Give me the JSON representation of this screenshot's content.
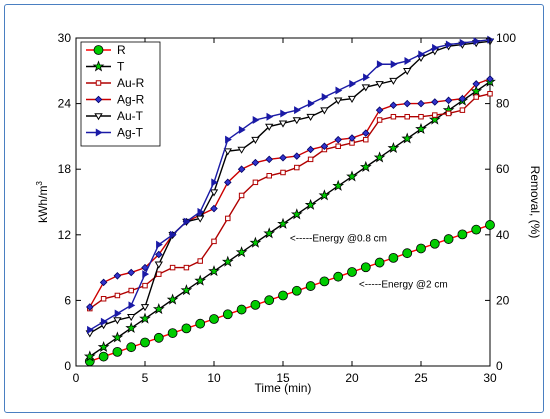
{
  "chart_data": {
    "type": "line",
    "xlabel": "Time (min)",
    "ylabel_left_base": "kWh/m",
    "ylabel_left_sup": "3",
    "ylabel_right": "Removal, (%)",
    "xlim": [
      0,
      30
    ],
    "ylim_left": [
      0,
      30
    ],
    "ylim_right": [
      0,
      100
    ],
    "xticks": [
      0,
      5,
      10,
      15,
      20,
      25,
      30
    ],
    "yticks_left": [
      0,
      6,
      12,
      18,
      24,
      30
    ],
    "yticks_right": [
      0,
      20,
      40,
      60,
      80,
      100
    ],
    "grid": false,
    "legend_position": "top-left",
    "annotations": [
      {
        "text": "<-----Energy @0.8 cm",
        "x": 15.5,
        "y": 11.4
      },
      {
        "text": "<-----Energy @2 cm",
        "x": 20.5,
        "y": 7.2
      }
    ],
    "x": [
      1,
      2,
      3,
      4,
      5,
      6,
      7,
      8,
      9,
      10,
      11,
      12,
      13,
      14,
      15,
      16,
      17,
      18,
      19,
      20,
      21,
      22,
      23,
      24,
      25,
      26,
      27,
      28,
      29,
      30
    ],
    "series": [
      {
        "name": "R",
        "axis": "left",
        "marker": "circle",
        "line_color": "#ff0000",
        "marker_fill": "#00cc00",
        "marker_edge": "#000000",
        "values": [
          0.43,
          0.86,
          1.29,
          1.72,
          2.15,
          2.58,
          3.01,
          3.44,
          3.87,
          4.3,
          4.73,
          5.16,
          5.59,
          6.02,
          6.45,
          6.88,
          7.31,
          7.74,
          8.17,
          8.6,
          9.03,
          9.46,
          9.89,
          10.32,
          10.75,
          11.18,
          11.61,
          12.04,
          12.47,
          12.9
        ]
      },
      {
        "name": "T",
        "axis": "left",
        "marker": "star",
        "line_color": "#000000",
        "marker_fill": "#00cc00",
        "marker_edge": "#000000",
        "values": [
          0.87,
          1.73,
          2.6,
          3.47,
          4.33,
          5.2,
          6.07,
          6.93,
          7.8,
          8.67,
          9.53,
          10.4,
          11.27,
          12.13,
          13.0,
          13.87,
          14.73,
          15.6,
          16.47,
          17.33,
          18.2,
          19.07,
          19.93,
          20.8,
          21.67,
          22.53,
          23.4,
          24.27,
          25.13,
          26.0
        ]
      },
      {
        "name": "Au-R",
        "axis": "right",
        "marker": "square",
        "line_color": "#b00000",
        "marker_fill": "#ffffff",
        "marker_edge": "#b00000",
        "values": [
          17.5,
          20.5,
          21.5,
          23,
          24.5,
          28,
          30,
          30,
          32,
          38,
          45,
          52,
          56,
          58,
          59,
          60.5,
          63,
          66,
          67,
          68,
          69,
          75,
          76,
          76,
          76,
          76.5,
          77,
          78,
          82,
          83
        ]
      },
      {
        "name": "Ag-R",
        "axis": "right",
        "marker": "diamond",
        "line_color": "#cc0000",
        "marker_fill": "#3333cc",
        "marker_edge": "#000066",
        "values": [
          18,
          25.5,
          27.5,
          28.5,
          30,
          34,
          40,
          44,
          46,
          48,
          56,
          60,
          62,
          63,
          63.5,
          64,
          66,
          67,
          69,
          69.5,
          71,
          78,
          79.5,
          80,
          80,
          80.5,
          81,
          81.5,
          86,
          87.5
        ]
      },
      {
        "name": "Au-T",
        "axis": "right",
        "marker": "triangle-down",
        "line_color": "#000000",
        "marker_fill": "#ffffff",
        "marker_edge": "#000000",
        "values": [
          10,
          12.5,
          14,
          15,
          18,
          31,
          40,
          44,
          45,
          53,
          65.5,
          66,
          69,
          73,
          74,
          75,
          76,
          78,
          81,
          81.5,
          85,
          86,
          87,
          90,
          94,
          96,
          97.5,
          98,
          98.5,
          99
        ]
      },
      {
        "name": "Ag-T",
        "axis": "right",
        "marker": "triangle-right",
        "line_color": "#1a1aa6",
        "marker_fill": "#1a1aa6",
        "marker_edge": "#1a1aa6",
        "values": [
          11,
          13.5,
          16,
          18.5,
          28,
          37,
          40,
          44,
          47,
          56,
          69,
          72,
          75,
          76,
          77,
          78,
          80,
          82,
          84,
          86,
          88,
          92,
          92,
          93,
          95,
          97,
          98,
          98.5,
          99,
          99.5
        ]
      }
    ]
  }
}
